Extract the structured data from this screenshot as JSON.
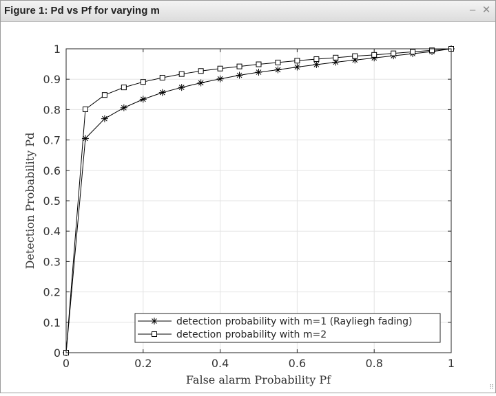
{
  "window": {
    "title": "Figure 1: Pd vs Pf for varying m",
    "minimize_glyph": "–",
    "close_glyph": "✕",
    "resize_glyph": "⠿"
  },
  "chart_data": {
    "type": "line",
    "title": "",
    "xlabel": "False alarm Probability Pf",
    "ylabel": "Detection Probability Pd",
    "xlim": [
      0,
      1
    ],
    "ylim": [
      0,
      1
    ],
    "grid": true,
    "legend_position": "bottom-right",
    "xticks": [
      0,
      0.2,
      0.4,
      0.6,
      0.8,
      1
    ],
    "xtick_labels": [
      "0",
      "0.2",
      "0.4",
      "0.6",
      "0.8",
      "1"
    ],
    "yticks": [
      0,
      0.1,
      0.2,
      0.3,
      0.4,
      0.5,
      0.6,
      0.7,
      0.8,
      0.9,
      1
    ],
    "ytick_labels": [
      "0",
      "0.1",
      "0.2",
      "0.3",
      "0.4",
      "0.5",
      "0.6",
      "0.7",
      "0.8",
      "0.9",
      "1"
    ],
    "x": [
      0,
      0.05,
      0.1,
      0.15,
      0.2,
      0.25,
      0.3,
      0.35,
      0.4,
      0.45,
      0.5,
      0.55,
      0.6,
      0.65,
      0.7,
      0.75,
      0.8,
      0.85,
      0.9,
      0.95,
      1
    ],
    "series": [
      {
        "name": "detection probability with m=1 (Rayliegh fading)",
        "marker": "asterisk",
        "color": "#000000",
        "values": [
          0,
          0.705,
          0.77,
          0.806,
          0.834,
          0.856,
          0.873,
          0.888,
          0.901,
          0.913,
          0.923,
          0.931,
          0.94,
          0.948,
          0.956,
          0.963,
          0.97,
          0.977,
          0.984,
          0.991,
          1.0
        ]
      },
      {
        "name": "detection probability with m=2",
        "marker": "square",
        "color": "#000000",
        "values": [
          0,
          0.801,
          0.848,
          0.873,
          0.891,
          0.905,
          0.917,
          0.927,
          0.935,
          0.942,
          0.949,
          0.955,
          0.961,
          0.966,
          0.971,
          0.976,
          0.98,
          0.985,
          0.99,
          0.995,
          1.0
        ]
      }
    ]
  }
}
